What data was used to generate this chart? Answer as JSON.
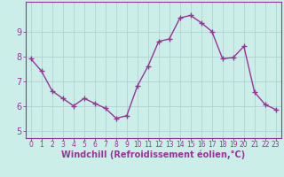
{
  "x": [
    0,
    1,
    2,
    3,
    4,
    5,
    6,
    7,
    8,
    9,
    10,
    11,
    12,
    13,
    14,
    15,
    16,
    17,
    18,
    19,
    20,
    21,
    22,
    23
  ],
  "y": [
    7.9,
    7.4,
    6.6,
    6.3,
    6.0,
    6.3,
    6.1,
    5.9,
    5.5,
    5.6,
    6.8,
    7.6,
    8.6,
    8.7,
    9.55,
    9.65,
    9.35,
    9.0,
    7.9,
    7.95,
    8.4,
    6.55,
    6.05,
    5.85
  ],
  "line_color": "#993399",
  "marker": "+",
  "markersize": 4,
  "linewidth": 1.0,
  "markeredgewidth": 1.0,
  "xlabel": "Windchill (Refroidissement éolien,°C)",
  "xlabel_fontsize": 7,
  "xtick_labels": [
    "0",
    "1",
    "2",
    "3",
    "4",
    "5",
    "6",
    "7",
    "8",
    "9",
    "10",
    "11",
    "12",
    "13",
    "14",
    "15",
    "16",
    "17",
    "18",
    "19",
    "20",
    "21",
    "22",
    "23"
  ],
  "ytick_labels": [
    "5",
    "6",
    "7",
    "8",
    "9"
  ],
  "yticks": [
    5,
    6,
    7,
    8,
    9
  ],
  "ylim": [
    4.7,
    10.2
  ],
  "xlim": [
    -0.5,
    23.5
  ],
  "background_color": "#cceee8",
  "grid_color": "#aacccc",
  "spine_color": "#993399",
  "tick_color": "#993399",
  "label_color": "#993399",
  "xtick_fontsize": 5.5,
  "ytick_fontsize": 7
}
